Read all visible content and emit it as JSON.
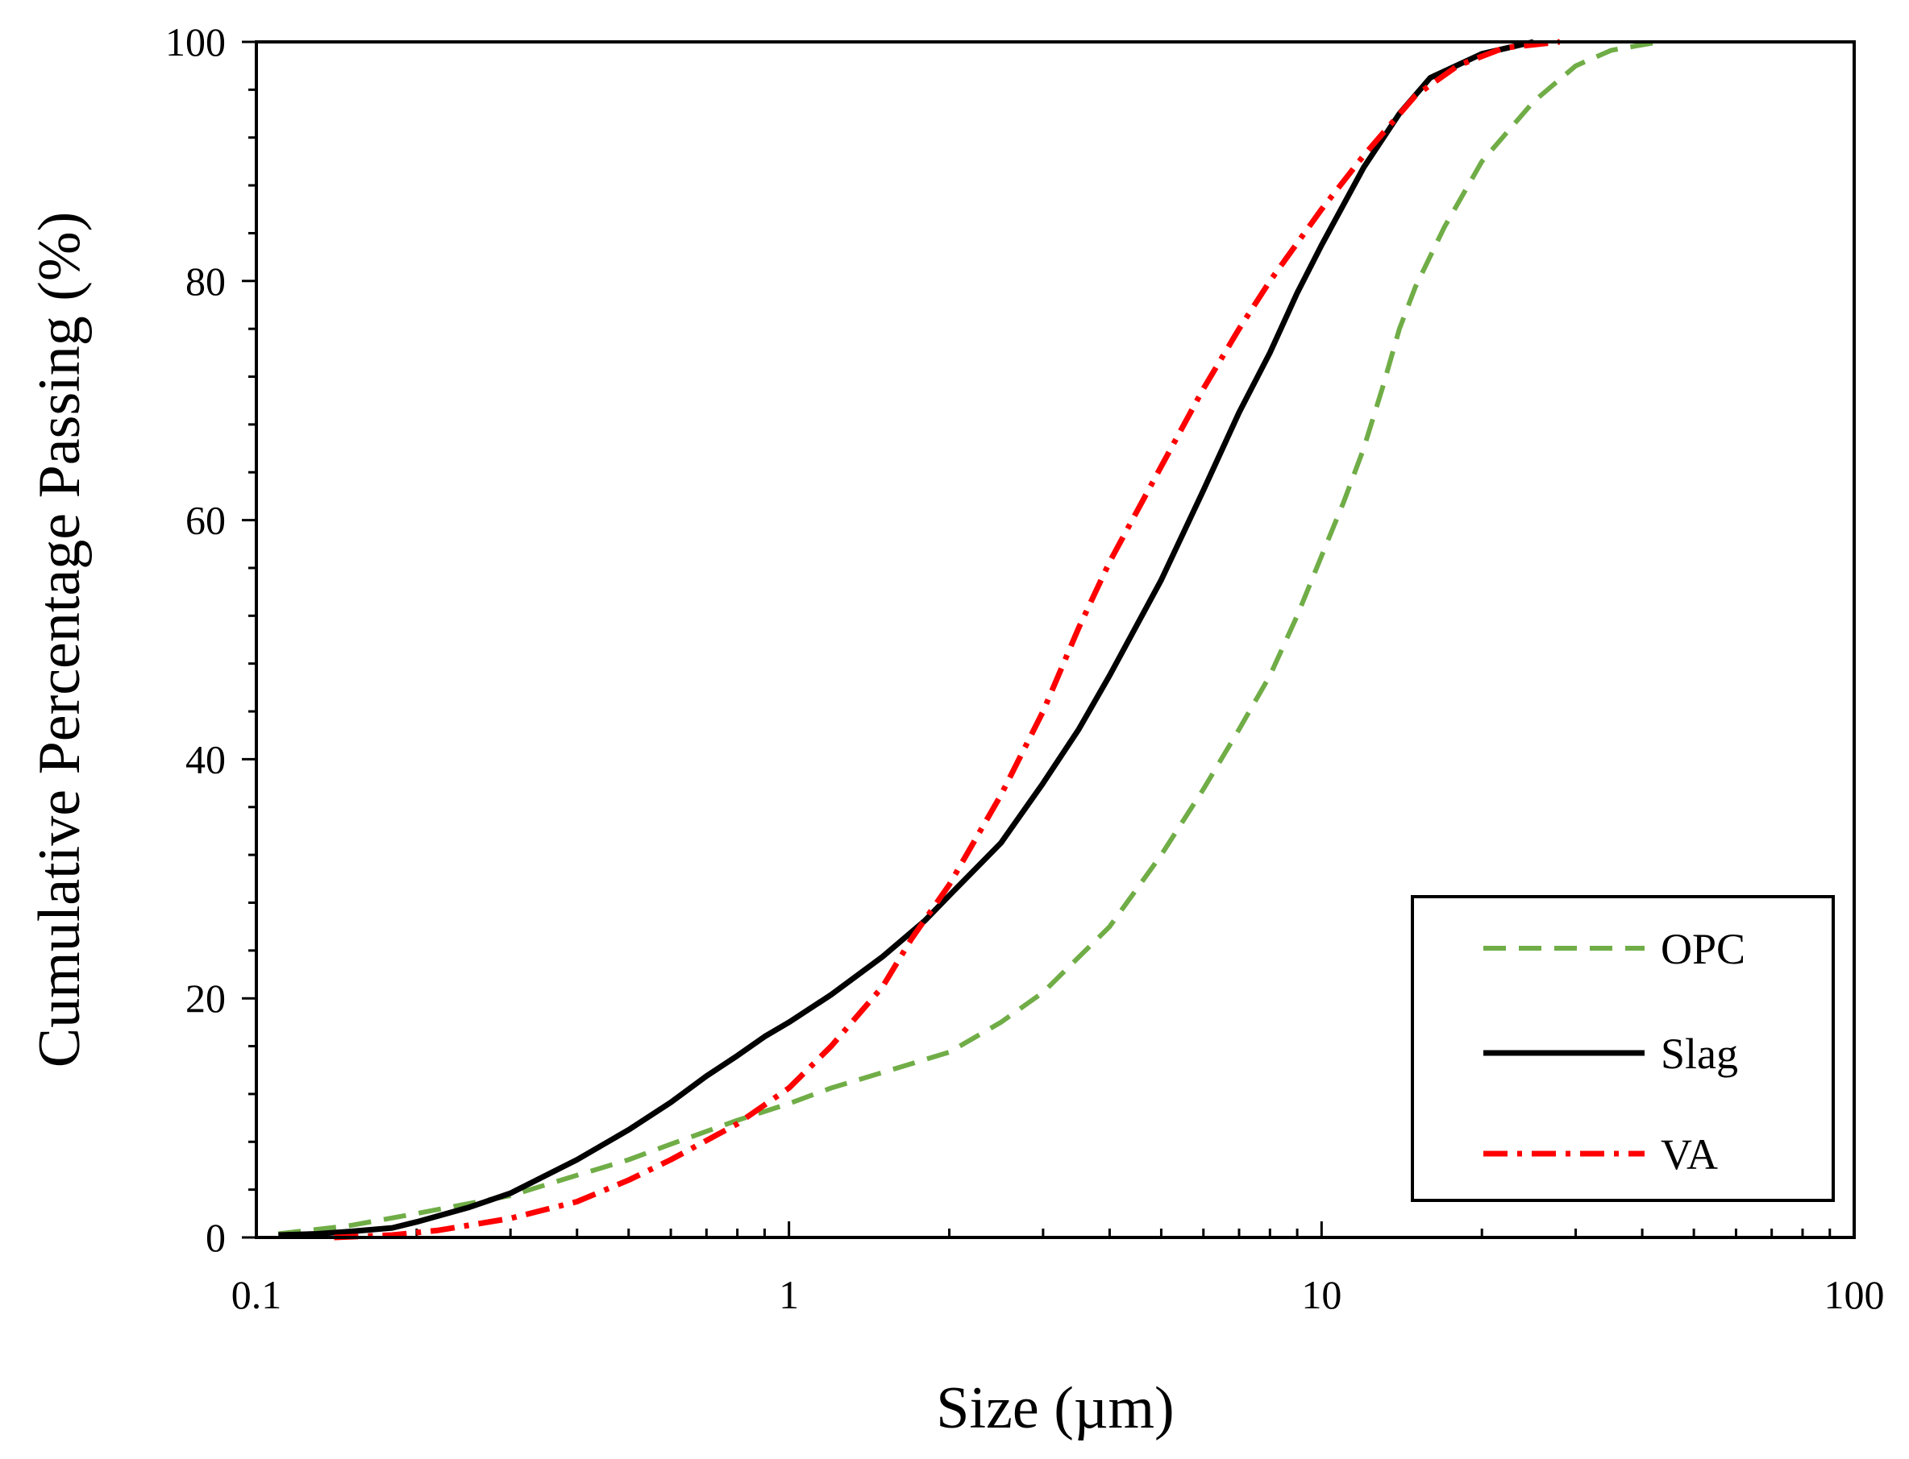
{
  "chart_data": {
    "type": "line",
    "title": "",
    "xlabel": "Size (µm)",
    "ylabel": "Cumulative Percentage Passing (%)",
    "xscale": "log",
    "xlim": [
      0.1,
      100
    ],
    "ylim": [
      0,
      100
    ],
    "grid": false,
    "legend_position": "bottom-right",
    "x_tick_labels": [
      "0.1",
      "1",
      "10",
      "100"
    ],
    "y_tick_labels": [
      "0",
      "20",
      "40",
      "60",
      "80",
      "100"
    ],
    "series": [
      {
        "name": "OPC",
        "color": "#70ad47",
        "style": "dashed",
        "points": [
          [
            0.11,
            0.3
          ],
          [
            0.15,
            1.0
          ],
          [
            0.2,
            2.0
          ],
          [
            0.3,
            3.5
          ],
          [
            0.4,
            5.2
          ],
          [
            0.5,
            6.5
          ],
          [
            0.6,
            7.8
          ],
          [
            0.8,
            9.8
          ],
          [
            1.0,
            11.2
          ],
          [
            1.2,
            12.5
          ],
          [
            1.5,
            13.8
          ],
          [
            2.0,
            15.5
          ],
          [
            2.5,
            18.0
          ],
          [
            3.0,
            20.5
          ],
          [
            4.0,
            26.0
          ],
          [
            5.0,
            32.0
          ],
          [
            6.0,
            37.5
          ],
          [
            7.0,
            42.5
          ],
          [
            8.0,
            47.0
          ],
          [
            9.0,
            52.0
          ],
          [
            10.0,
            57.0
          ],
          [
            11.0,
            61.5
          ],
          [
            12.0,
            66.0
          ],
          [
            13.0,
            71.0
          ],
          [
            14.0,
            76.0
          ],
          [
            15.0,
            79.5
          ],
          [
            17.0,
            84.5
          ],
          [
            20.0,
            90.0
          ],
          [
            25.0,
            95.0
          ],
          [
            30.0,
            98.0
          ],
          [
            35.0,
            99.3
          ],
          [
            43.0,
            100.0
          ]
        ]
      },
      {
        "name": "Slag",
        "color": "#000000",
        "style": "solid",
        "points": [
          [
            0.11,
            0.2
          ],
          [
            0.13,
            0.3
          ],
          [
            0.15,
            0.5
          ],
          [
            0.18,
            0.8
          ],
          [
            0.2,
            1.3
          ],
          [
            0.25,
            2.5
          ],
          [
            0.3,
            3.7
          ],
          [
            0.4,
            6.5
          ],
          [
            0.5,
            9.0
          ],
          [
            0.6,
            11.3
          ],
          [
            0.7,
            13.5
          ],
          [
            0.8,
            15.2
          ],
          [
            0.9,
            16.8
          ],
          [
            1.0,
            18.0
          ],
          [
            1.2,
            20.3
          ],
          [
            1.5,
            23.5
          ],
          [
            1.8,
            26.5
          ],
          [
            2.0,
            28.6
          ],
          [
            2.5,
            33.0
          ],
          [
            3.0,
            38.0
          ],
          [
            3.5,
            42.5
          ],
          [
            4.0,
            47.0
          ],
          [
            5.0,
            55.0
          ],
          [
            6.0,
            62.5
          ],
          [
            7.0,
            69.0
          ],
          [
            8.0,
            74.0
          ],
          [
            9.0,
            79.0
          ],
          [
            10.0,
            83.0
          ],
          [
            12.0,
            89.5
          ],
          [
            14.0,
            94.0
          ],
          [
            16.0,
            97.0
          ],
          [
            20.0,
            99.0
          ],
          [
            25.0,
            100.0
          ]
        ]
      },
      {
        "name": "VA",
        "color": "#ff0000",
        "style": "dashdot",
        "points": [
          [
            0.14,
            0.0
          ],
          [
            0.18,
            0.2
          ],
          [
            0.22,
            0.6
          ],
          [
            0.3,
            1.6
          ],
          [
            0.4,
            3.0
          ],
          [
            0.5,
            4.8
          ],
          [
            0.6,
            6.5
          ],
          [
            0.8,
            9.5
          ],
          [
            1.0,
            12.5
          ],
          [
            1.2,
            16.0
          ],
          [
            1.5,
            21.0
          ],
          [
            1.7,
            25.0
          ],
          [
            2.0,
            29.5
          ],
          [
            2.5,
            37.0
          ],
          [
            3.0,
            44.0
          ],
          [
            3.5,
            51.0
          ],
          [
            4.0,
            56.5
          ],
          [
            5.0,
            64.5
          ],
          [
            6.0,
            71.0
          ],
          [
            7.0,
            76.0
          ],
          [
            8.0,
            80.0
          ],
          [
            10.0,
            86.0
          ],
          [
            12.0,
            90.5
          ],
          [
            15.0,
            95.5
          ],
          [
            18.0,
            98.0
          ],
          [
            22.0,
            99.5
          ],
          [
            28.0,
            100.0
          ]
        ]
      }
    ]
  }
}
